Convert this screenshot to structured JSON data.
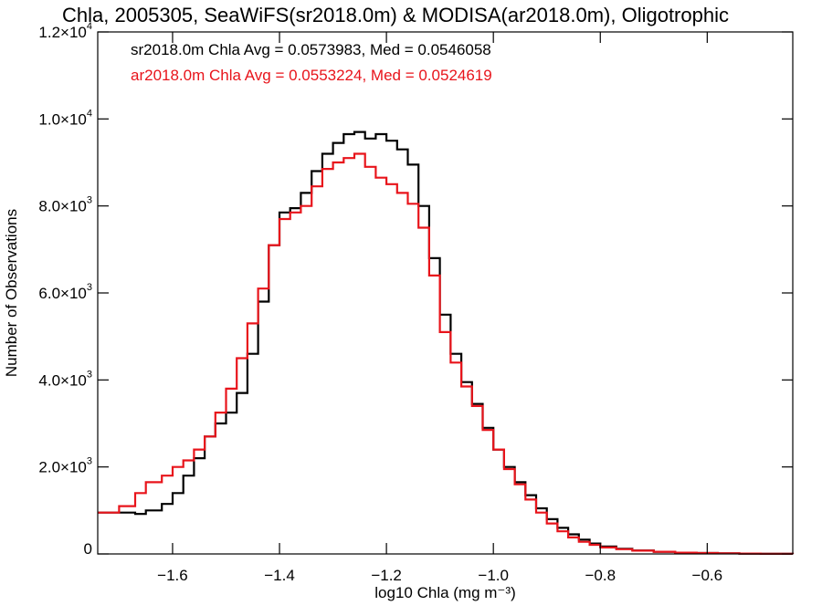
{
  "chart_data": {
    "type": "line",
    "title": "Chla, 2005305, SeaWiFS(sr2018.0m) & MODISA(ar2018.0m), Oligotrophic",
    "xlabel": "log10 Chla (mg m⁻³)",
    "ylabel": "Number of Observations",
    "xlim": [
      -1.74,
      -0.44
    ],
    "ylim": [
      0,
      12000
    ],
    "grid": false,
    "step": true,
    "x_ticks": [
      {
        "value": -1.6,
        "label": "−1.6"
      },
      {
        "value": -1.4,
        "label": "−1.4"
      },
      {
        "value": -1.2,
        "label": "−1.2"
      },
      {
        "value": -1.0,
        "label": "−1.0"
      },
      {
        "value": -0.8,
        "label": "−0.8"
      },
      {
        "value": -0.6,
        "label": "−0.6"
      }
    ],
    "y_ticks": [
      {
        "value": 0,
        "label": "0",
        "sup": ""
      },
      {
        "value": 2000,
        "label": "2.0×10",
        "sup": "3"
      },
      {
        "value": 4000,
        "label": "4.0×10",
        "sup": "3"
      },
      {
        "value": 6000,
        "label": "6.0×10",
        "sup": "3"
      },
      {
        "value": 8000,
        "label": "8.0×10",
        "sup": "3"
      },
      {
        "value": 10000,
        "label": "1.0×10",
        "sup": "4"
      },
      {
        "value": 12000,
        "label": "1.2×10",
        "sup": "4"
      }
    ],
    "annotations": [
      {
        "text": "sr2018.0m Chla Avg = 0.0573983, Med = 0.0546058",
        "color": "#000000"
      },
      {
        "text": "ar2018.0m Chla Avg = 0.0553224, Med = 0.0524619",
        "color": "#e8141b"
      }
    ],
    "series": [
      {
        "color": "#000000",
        "x": [
          -1.74,
          -1.7,
          -1.67,
          -1.65,
          -1.62,
          -1.6,
          -1.58,
          -1.56,
          -1.54,
          -1.52,
          -1.5,
          -1.48,
          -1.46,
          -1.44,
          -1.42,
          -1.4,
          -1.38,
          -1.36,
          -1.34,
          -1.32,
          -1.3,
          -1.28,
          -1.26,
          -1.24,
          -1.22,
          -1.2,
          -1.18,
          -1.16,
          -1.14,
          -1.12,
          -1.1,
          -1.08,
          -1.06,
          -1.04,
          -1.02,
          -1.0,
          -0.98,
          -0.96,
          -0.94,
          -0.92,
          -0.9,
          -0.88,
          -0.86,
          -0.84,
          -0.82,
          -0.8,
          -0.77,
          -0.74,
          -0.7,
          -0.66,
          -0.62,
          -0.58,
          -0.54,
          -0.5,
          -0.44
        ],
        "y": [
          950,
          950,
          920,
          1000,
          1150,
          1400,
          1800,
          2200,
          2700,
          3000,
          3250,
          3700,
          4600,
          5800,
          7100,
          7850,
          7950,
          8300,
          8800,
          9200,
          9450,
          9650,
          9700,
          9550,
          9650,
          9500,
          9300,
          8950,
          8000,
          6800,
          5500,
          4600,
          3950,
          3450,
          2900,
          2400,
          2000,
          1650,
          1350,
          1050,
          800,
          600,
          450,
          330,
          240,
          170,
          120,
          80,
          50,
          30,
          20,
          12,
          8,
          5,
          3
        ]
      },
      {
        "color": "#e8141b",
        "x": [
          -1.74,
          -1.7,
          -1.67,
          -1.65,
          -1.62,
          -1.6,
          -1.58,
          -1.56,
          -1.54,
          -1.52,
          -1.5,
          -1.48,
          -1.46,
          -1.44,
          -1.42,
          -1.4,
          -1.38,
          -1.36,
          -1.34,
          -1.32,
          -1.3,
          -1.28,
          -1.26,
          -1.24,
          -1.22,
          -1.2,
          -1.18,
          -1.16,
          -1.14,
          -1.12,
          -1.1,
          -1.08,
          -1.06,
          -1.04,
          -1.02,
          -1.0,
          -0.98,
          -0.96,
          -0.94,
          -0.92,
          -0.9,
          -0.88,
          -0.86,
          -0.84,
          -0.82,
          -0.8,
          -0.77,
          -0.74,
          -0.7,
          -0.66,
          -0.62,
          -0.58,
          -0.54,
          -0.5,
          -0.44
        ],
        "y": [
          950,
          1100,
          1400,
          1650,
          1800,
          2000,
          2150,
          2400,
          2700,
          3250,
          3800,
          4500,
          5300,
          6100,
          7100,
          7700,
          7850,
          8000,
          8450,
          8850,
          9000,
          9100,
          9200,
          8900,
          8650,
          8500,
          8300,
          8050,
          7500,
          6400,
          5100,
          4400,
          3850,
          3400,
          2850,
          2400,
          1950,
          1600,
          1250,
          950,
          700,
          520,
          380,
          280,
          210,
          150,
          110,
          75,
          50,
          30,
          20,
          12,
          8,
          5,
          3
        ]
      }
    ]
  }
}
